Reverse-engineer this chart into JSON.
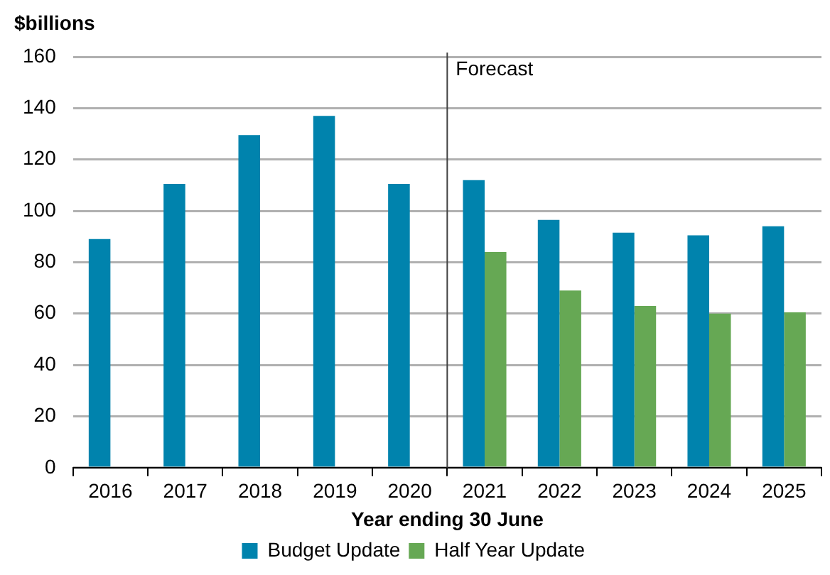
{
  "chart_data": {
    "type": "bar",
    "ylabel": "$billions",
    "xlabel": "Year ending 30 June",
    "categories": [
      "2016",
      "2017",
      "2018",
      "2019",
      "2020",
      "2021",
      "2022",
      "2023",
      "2024",
      "2025"
    ],
    "series": [
      {
        "name": "Budget Update",
        "color": "#0083ad",
        "values": [
          89,
          110.5,
          129.5,
          137,
          110.5,
          112,
          96.5,
          91.5,
          90.5,
          94
        ]
      },
      {
        "name": "Half Year Update",
        "color": "#66a854",
        "values": [
          null,
          null,
          null,
          null,
          null,
          84,
          69,
          63,
          60,
          60.5
        ]
      }
    ],
    "ylim": [
      0,
      160
    ],
    "yticks": [
      0,
      20,
      40,
      60,
      80,
      100,
      120,
      140,
      160
    ],
    "grid": "y",
    "legend": "bottom",
    "ref_lines": [
      {
        "axis": "x",
        "value": "2021",
        "label": "Forecast",
        "color": "#404040"
      }
    ]
  }
}
